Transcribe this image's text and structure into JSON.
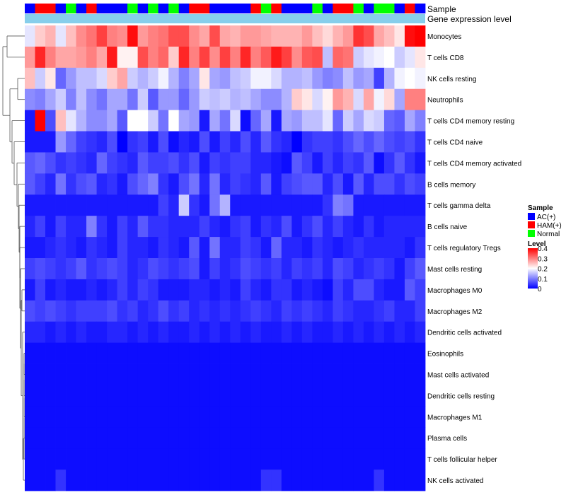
{
  "chart_data": {
    "type": "heatmap",
    "title": "",
    "annotation_labels": [
      "Sample",
      "Gene expression level"
    ],
    "row_labels": [
      "Monocytes",
      "T cells CD8",
      "NK cells resting",
      "Neutrophils",
      "T cells CD4 memory resting",
      "T cells CD4 naive",
      "T cells CD4 memory activated",
      "B cells memory",
      "T cells gamma delta",
      "B cells naive",
      "T cells regulatory  Tregs",
      "Mast cells resting",
      "Macrophages M0",
      "Macrophages M2",
      "Dendritic cells activated",
      "Eosinophils",
      "Mast cells activated",
      "Dendritic cells resting",
      "Macrophages M1",
      "Plasma cells",
      "T cells follicular helper",
      "NK cells activated"
    ],
    "sample_groups": [
      "AC",
      "HAM",
      "HAM",
      "AC",
      "Normal",
      "AC",
      "HAM",
      "AC",
      "AC",
      "AC",
      "Normal",
      "AC",
      "Normal",
      "AC",
      "Normal",
      "AC",
      "HAM",
      "HAM",
      "AC",
      "AC",
      "AC",
      "AC",
      "HAM",
      "Normal",
      "HAM",
      "AC",
      "AC",
      "AC",
      "Normal",
      "AC",
      "HAM",
      "HAM",
      "Normal",
      "AC",
      "Normal",
      "Normal",
      "AC",
      "HAM",
      "AC"
    ],
    "group_colors": {
      "AC": "#0000ff",
      "HAM": "#ff0000",
      "Normal": "#00ff00"
    },
    "gene_expression_bar_color": "#87ceeb",
    "color_scale": {
      "min": 0,
      "max": 0.4,
      "colors": [
        "#0000ff",
        "#ffffff",
        "#ff0000"
      ]
    },
    "values": [
      [
        0.18,
        0.24,
        0.26,
        0.18,
        0.25,
        0.29,
        0.31,
        0.35,
        0.3,
        0.29,
        0.39,
        0.28,
        0.3,
        0.31,
        0.34,
        0.34,
        0.29,
        0.27,
        0.34,
        0.27,
        0.26,
        0.28,
        0.28,
        0.27,
        0.26,
        0.26,
        0.26,
        0.28,
        0.25,
        0.23,
        0.26,
        0.28,
        0.36,
        0.34,
        0.27,
        0.25,
        0.22,
        0.39,
        0.4
      ],
      [
        0.28,
        0.37,
        0.3,
        0.27,
        0.27,
        0.28,
        0.3,
        0.27,
        0.38,
        0.21,
        0.21,
        0.34,
        0.3,
        0.32,
        0.24,
        0.37,
        0.3,
        0.35,
        0.29,
        0.35,
        0.3,
        0.37,
        0.3,
        0.33,
        0.38,
        0.35,
        0.29,
        0.33,
        0.34,
        0.15,
        0.32,
        0.31,
        0.16,
        0.18,
        0.19,
        0.2,
        0.16,
        0.18,
        0.22
      ],
      [
        0.25,
        0.16,
        0.22,
        0.08,
        0.12,
        0.15,
        0.15,
        0.17,
        0.24,
        0.27,
        0.16,
        0.14,
        0.16,
        0.19,
        0.14,
        0.1,
        0.13,
        0.22,
        0.13,
        0.12,
        0.15,
        0.16,
        0.19,
        0.19,
        0.17,
        0.14,
        0.14,
        0.15,
        0.12,
        0.1,
        0.11,
        0.15,
        0.12,
        0.13,
        0.05,
        0.14,
        0.19,
        0.2,
        0.19
      ],
      [
        0.11,
        0.1,
        0.13,
        0.16,
        0.1,
        0.15,
        0.11,
        0.09,
        0.13,
        0.13,
        0.09,
        0.16,
        0.07,
        0.12,
        0.12,
        0.08,
        0.12,
        0.16,
        0.15,
        0.16,
        0.14,
        0.15,
        0.13,
        0.11,
        0.11,
        0.14,
        0.24,
        0.22,
        0.17,
        0.21,
        0.28,
        0.26,
        0.17,
        0.27,
        0.19,
        0.23,
        0.13,
        0.3,
        0.3
      ],
      [
        0.02,
        0.4,
        0.06,
        0.25,
        0.18,
        0.14,
        0.11,
        0.11,
        0.13,
        0.07,
        0.2,
        0.2,
        0.16,
        0.09,
        0.2,
        0.13,
        0.12,
        0.02,
        0.13,
        0.09,
        0.17,
        0.01,
        0.08,
        0.13,
        0.02,
        0.13,
        0.12,
        0.15,
        0.15,
        0.18,
        0.08,
        0.16,
        0.13,
        0.17,
        0.16,
        0.08,
        0.07,
        0.13,
        0.1
      ],
      [
        0.02,
        0.02,
        0.02,
        0.12,
        0.08,
        0.05,
        0.04,
        0.03,
        0.06,
        0.0,
        0.04,
        0.05,
        0.02,
        0.06,
        0.01,
        0.03,
        0.02,
        0.06,
        0.02,
        0.05,
        0.03,
        0.06,
        0.03,
        0.07,
        0.04,
        0.03,
        0.0,
        0.04,
        0.05,
        0.05,
        0.04,
        0.06,
        0.08,
        0.06,
        0.08,
        0.06,
        0.05,
        0.06,
        0.04
      ],
      [
        0.07,
        0.08,
        0.06,
        0.04,
        0.05,
        0.04,
        0.03,
        0.08,
        0.05,
        0.04,
        0.03,
        0.07,
        0.05,
        0.05,
        0.06,
        0.04,
        0.06,
        0.02,
        0.05,
        0.04,
        0.05,
        0.05,
        0.03,
        0.03,
        0.02,
        0.01,
        0.07,
        0.05,
        0.02,
        0.05,
        0.03,
        0.05,
        0.04,
        0.07,
        0.01,
        0.04,
        0.07,
        0.04,
        0.02
      ],
      [
        0.07,
        0.05,
        0.03,
        0.09,
        0.04,
        0.06,
        0.07,
        0.03,
        0.04,
        0.02,
        0.06,
        0.08,
        0.1,
        0.04,
        0.02,
        0.06,
        0.09,
        0.03,
        0.09,
        0.03,
        0.05,
        0.04,
        0.03,
        0.07,
        0.02,
        0.05,
        0.06,
        0.07,
        0.07,
        0.03,
        0.06,
        0.02,
        0.07,
        0.03,
        0.06,
        0.06,
        0.04,
        0.06,
        0.05
      ],
      [
        0.02,
        0.02,
        0.02,
        0.02,
        0.02,
        0.02,
        0.02,
        0.02,
        0.02,
        0.02,
        0.02,
        0.02,
        0.02,
        0.05,
        0.03,
        0.16,
        0.04,
        0.02,
        0.09,
        0.14,
        0.02,
        0.02,
        0.02,
        0.02,
        0.02,
        0.02,
        0.02,
        0.02,
        0.02,
        0.04,
        0.1,
        0.09,
        0.02,
        0.02,
        0.02,
        0.02,
        0.02,
        0.02,
        0.02
      ],
      [
        0.03,
        0.05,
        0.02,
        0.05,
        0.03,
        0.03,
        0.1,
        0.04,
        0.02,
        0.05,
        0.03,
        0.07,
        0.04,
        0.04,
        0.03,
        0.03,
        0.03,
        0.05,
        0.03,
        0.02,
        0.04,
        0.05,
        0.02,
        0.04,
        0.03,
        0.06,
        0.02,
        0.04,
        0.06,
        0.03,
        0.05,
        0.03,
        0.02,
        0.04,
        0.02,
        0.03,
        0.03,
        0.03,
        0.03
      ],
      [
        0.02,
        0.02,
        0.03,
        0.04,
        0.03,
        0.02,
        0.04,
        0.03,
        0.02,
        0.05,
        0.03,
        0.03,
        0.02,
        0.04,
        0.03,
        0.02,
        0.07,
        0.02,
        0.09,
        0.03,
        0.03,
        0.05,
        0.04,
        0.02,
        0.08,
        0.03,
        0.03,
        0.02,
        0.04,
        0.03,
        0.02,
        0.03,
        0.04,
        0.03,
        0.03,
        0.03,
        0.03,
        0.02,
        0.04
      ],
      [
        0.05,
        0.06,
        0.05,
        0.04,
        0.05,
        0.07,
        0.04,
        0.05,
        0.06,
        0.05,
        0.03,
        0.04,
        0.06,
        0.05,
        0.04,
        0.05,
        0.06,
        0.02,
        0.05,
        0.03,
        0.04,
        0.06,
        0.05,
        0.04,
        0.05,
        0.03,
        0.05,
        0.04,
        0.05,
        0.03,
        0.06,
        0.05,
        0.03,
        0.04,
        0.05,
        0.04,
        0.02,
        0.05,
        0.07
      ],
      [
        0.02,
        0.05,
        0.02,
        0.03,
        0.02,
        0.02,
        0.03,
        0.02,
        0.03,
        0.05,
        0.03,
        0.05,
        0.04,
        0.02,
        0.02,
        0.02,
        0.03,
        0.03,
        0.02,
        0.03,
        0.02,
        0.05,
        0.03,
        0.02,
        0.04,
        0.04,
        0.02,
        0.03,
        0.02,
        0.01,
        0.05,
        0.03,
        0.06,
        0.06,
        0.03,
        0.02,
        0.02,
        0.07,
        0.05
      ],
      [
        0.06,
        0.05,
        0.06,
        0.05,
        0.04,
        0.05,
        0.05,
        0.05,
        0.06,
        0.04,
        0.05,
        0.03,
        0.04,
        0.06,
        0.04,
        0.05,
        0.03,
        0.04,
        0.03,
        0.04,
        0.03,
        0.04,
        0.05,
        0.04,
        0.03,
        0.05,
        0.04,
        0.05,
        0.04,
        0.03,
        0.05,
        0.04,
        0.03,
        0.03,
        0.04,
        0.05,
        0.03,
        0.03,
        0.05
      ],
      [
        0.03,
        0.03,
        0.02,
        0.03,
        0.02,
        0.03,
        0.02,
        0.02,
        0.03,
        0.03,
        0.02,
        0.03,
        0.02,
        0.03,
        0.02,
        0.02,
        0.03,
        0.02,
        0.03,
        0.02,
        0.03,
        0.02,
        0.03,
        0.02,
        0.02,
        0.03,
        0.02,
        0.03,
        0.02,
        0.02,
        0.03,
        0.02,
        0.03,
        0.02,
        0.03,
        0.02,
        0.03,
        0.02,
        0.03
      ],
      [
        0.01,
        0.01,
        0.01,
        0.01,
        0.01,
        0.01,
        0.01,
        0.01,
        0.01,
        0.01,
        0.01,
        0.01,
        0.01,
        0.01,
        0.01,
        0.01,
        0.01,
        0.01,
        0.01,
        0.01,
        0.01,
        0.01,
        0.01,
        0.01,
        0.01,
        0.01,
        0.01,
        0.01,
        0.01,
        0.01,
        0.01,
        0.01,
        0.01,
        0.01,
        0.01,
        0.01,
        0.01,
        0.01,
        0.01
      ],
      [
        0.01,
        0.01,
        0.01,
        0.01,
        0.01,
        0.01,
        0.01,
        0.01,
        0.01,
        0.01,
        0.01,
        0.01,
        0.01,
        0.01,
        0.01,
        0.01,
        0.01,
        0.01,
        0.01,
        0.01,
        0.01,
        0.01,
        0.01,
        0.01,
        0.01,
        0.01,
        0.01,
        0.01,
        0.01,
        0.01,
        0.01,
        0.01,
        0.01,
        0.01,
        0.01,
        0.01,
        0.01,
        0.01,
        0.01
      ],
      [
        0.01,
        0.01,
        0.01,
        0.01,
        0.01,
        0.01,
        0.01,
        0.01,
        0.01,
        0.01,
        0.01,
        0.01,
        0.01,
        0.01,
        0.01,
        0.01,
        0.01,
        0.01,
        0.01,
        0.01,
        0.01,
        0.01,
        0.01,
        0.01,
        0.01,
        0.01,
        0.01,
        0.01,
        0.01,
        0.01,
        0.01,
        0.01,
        0.01,
        0.01,
        0.01,
        0.01,
        0.01,
        0.01,
        0.01
      ],
      [
        0.01,
        0.01,
        0.01,
        0.01,
        0.01,
        0.01,
        0.01,
        0.01,
        0.01,
        0.01,
        0.01,
        0.01,
        0.01,
        0.01,
        0.01,
        0.01,
        0.01,
        0.01,
        0.01,
        0.01,
        0.01,
        0.01,
        0.01,
        0.01,
        0.01,
        0.01,
        0.01,
        0.01,
        0.01,
        0.01,
        0.01,
        0.01,
        0.01,
        0.01,
        0.01,
        0.01,
        0.01,
        0.01,
        0.01
      ],
      [
        0.01,
        0.01,
        0.01,
        0.01,
        0.01,
        0.01,
        0.01,
        0.01,
        0.01,
        0.01,
        0.01,
        0.01,
        0.01,
        0.01,
        0.01,
        0.01,
        0.01,
        0.01,
        0.01,
        0.01,
        0.01,
        0.01,
        0.01,
        0.01,
        0.01,
        0.01,
        0.01,
        0.01,
        0.01,
        0.01,
        0.01,
        0.01,
        0.01,
        0.01,
        0.01,
        0.01,
        0.01,
        0.01,
        0.01
      ],
      [
        0.01,
        0.01,
        0.01,
        0.01,
        0.01,
        0.01,
        0.01,
        0.01,
        0.01,
        0.01,
        0.01,
        0.01,
        0.01,
        0.01,
        0.01,
        0.01,
        0.01,
        0.01,
        0.01,
        0.01,
        0.01,
        0.01,
        0.01,
        0.01,
        0.01,
        0.01,
        0.01,
        0.01,
        0.01,
        0.01,
        0.01,
        0.01,
        0.01,
        0.01,
        0.01,
        0.01,
        0.01,
        0.01,
        0.01
      ],
      [
        0.01,
        0.01,
        0.01,
        0.04,
        0.01,
        0.01,
        0.01,
        0.01,
        0.01,
        0.01,
        0.01,
        0.01,
        0.01,
        0.01,
        0.01,
        0.01,
        0.01,
        0.01,
        0.01,
        0.01,
        0.01,
        0.01,
        0.01,
        0.04,
        0.04,
        0.01,
        0.01,
        0.01,
        0.01,
        0.01,
        0.01,
        0.01,
        0.01,
        0.01,
        0.04,
        0.01,
        0.01,
        0.01,
        0.01
      ]
    ],
    "legend": {
      "sample": {
        "title": "Sample",
        "items": [
          {
            "label": "AC(+)",
            "color": "#0000ff"
          },
          {
            "label": "HAM(+)",
            "color": "#ff0000"
          },
          {
            "label": "Normal",
            "color": "#00ff00"
          }
        ]
      },
      "level": {
        "title": "Level",
        "ticks": [
          0.4,
          0.3,
          0.2,
          0.1,
          0
        ],
        "tick_labels": [
          "0.4",
          "0.3",
          "0.2",
          "0.1",
          "0"
        ]
      }
    }
  }
}
